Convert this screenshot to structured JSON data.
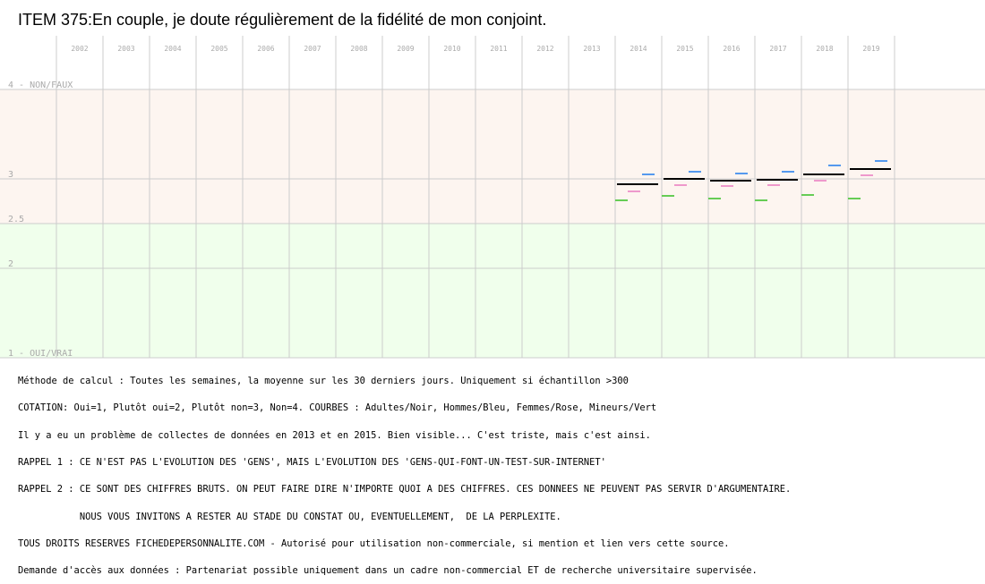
{
  "header": {
    "title": "ITEM 375:En couple, je doute régulièrement de la fidélité de mon conjoint."
  },
  "chart_data": {
    "type": "line",
    "title": "ITEM 375:En couple, je doute régulièrement de la fidélité de mon conjoint.",
    "xlabel": "",
    "ylabel": "",
    "x": [
      "2002",
      "2003",
      "2004",
      "2005",
      "2006",
      "2007",
      "2008",
      "2009",
      "2010",
      "2011",
      "2012",
      "2013",
      "2014",
      "2015",
      "2016",
      "2017",
      "2018",
      "2019"
    ],
    "ylim": [
      1,
      4
    ],
    "y_ticks": [
      {
        "value": 4,
        "label": "4 - NON/FAUX"
      },
      {
        "value": 3,
        "label": "3"
      },
      {
        "value": 2.5,
        "label": "2.5"
      },
      {
        "value": 2,
        "label": "2"
      },
      {
        "value": 1,
        "label": "1 - OUI/VRAI"
      }
    ],
    "grid": true,
    "bands": [
      {
        "from": 2.5,
        "to": 4,
        "color": "#fdf5f0"
      },
      {
        "from": 1,
        "to": 2.5,
        "color": "#f0ffec"
      }
    ],
    "series": [
      {
        "name": "Adultes",
        "color": "#000000",
        "values": [
          null,
          null,
          null,
          null,
          null,
          null,
          null,
          null,
          null,
          null,
          null,
          null,
          2.94,
          3.0,
          2.98,
          2.99,
          3.05,
          3.11
        ]
      },
      {
        "name": "Hommes",
        "color": "#5599ee",
        "values": [
          null,
          null,
          null,
          null,
          null,
          null,
          null,
          null,
          null,
          null,
          null,
          null,
          3.05,
          3.08,
          3.06,
          3.08,
          3.15,
          3.2
        ]
      },
      {
        "name": "Femmes",
        "color": "#ee99cc",
        "values": [
          null,
          null,
          null,
          null,
          null,
          null,
          null,
          null,
          null,
          null,
          null,
          null,
          2.86,
          2.93,
          2.92,
          2.93,
          2.98,
          3.04
        ]
      },
      {
        "name": "Mineurs",
        "color": "#66cc55",
        "values": [
          null,
          null,
          null,
          null,
          null,
          null,
          null,
          null,
          null,
          null,
          null,
          null,
          2.76,
          2.81,
          2.78,
          2.76,
          2.82,
          2.78
        ]
      }
    ]
  },
  "notes": [
    "Méthode de calcul : Toutes les semaines, la moyenne sur les 30 derniers jours. Uniquement si échantillon >300",
    "COTATION: Oui=1, Plutôt oui=2, Plutôt non=3, Non=4. COURBES : Adultes/Noir, Hommes/Bleu, Femmes/Rose, Mineurs/Vert",
    "Il y a eu un problème de collectes de données en 2013 et en 2015. Bien visible... C'est triste, mais c'est ainsi.",
    "RAPPEL 1 : CE N'EST PAS L'EVOLUTION DES 'GENS', MAIS L'EVOLUTION DES 'GENS-QUI-FONT-UN-TEST-SUR-INTERNET'",
    "RAPPEL 2 : CE SONT DES CHIFFRES BRUTS. ON PEUT FAIRE DIRE N'IMPORTE QUOI A DES CHIFFRES. CES DONNEES NE PEUVENT PAS SERVIR D'ARGUMENTAIRE.",
    "           NOUS VOUS INVITONS A RESTER AU STADE DU CONSTAT OU, EVENTUELLEMENT,  DE LA PERPLEXITE.",
    "TOUS DROITS RESERVES FICHEDEPERSONNALITE.COM - Autorisé pour utilisation non-commerciale, si mention et lien vers cette source.",
    "Demande d'accès aux données : Partenariat possible uniquement dans un cadre non-commercial ET de recherche universitaire supervisée."
  ]
}
